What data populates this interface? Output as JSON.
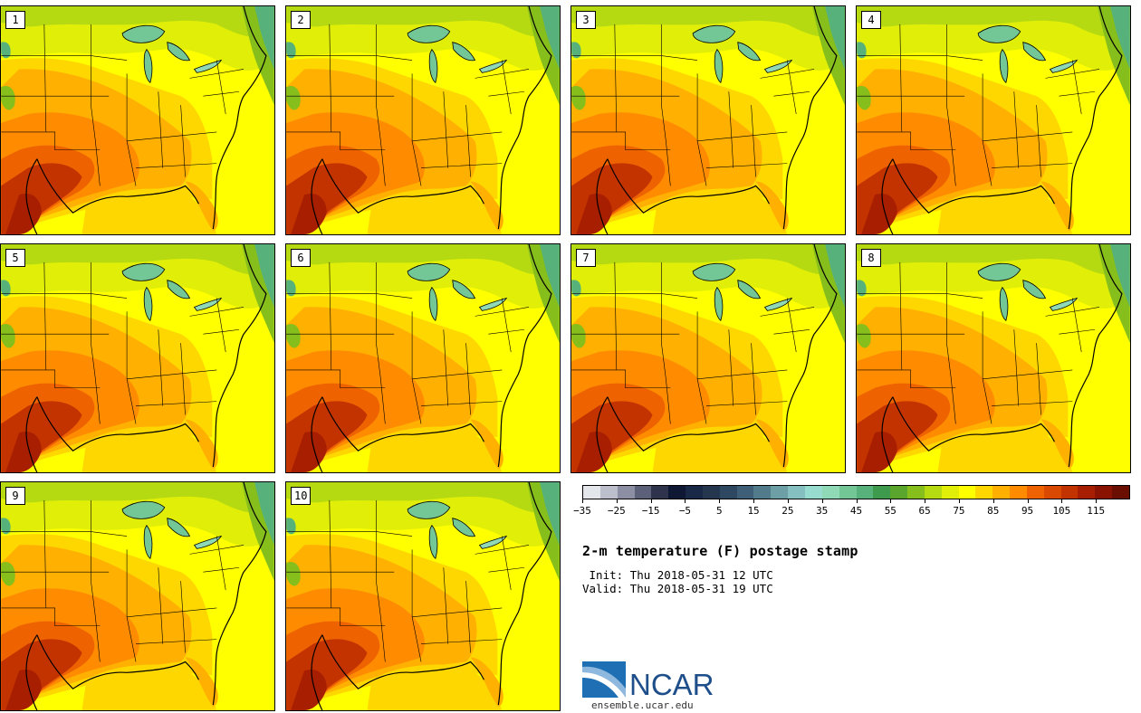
{
  "members": [
    "1",
    "2",
    "3",
    "4",
    "5",
    "6",
    "7",
    "8",
    "9",
    "10"
  ],
  "colorbar": {
    "colors": [
      "#e3e6ea",
      "#bcbecb",
      "#8c8fa4",
      "#5c6079",
      "#2f334c",
      "#0e1733",
      "#1a2848",
      "#24374f",
      "#2f4862",
      "#3f5e77",
      "#527c8c",
      "#6c9fa6",
      "#86bfbf",
      "#98dccf",
      "#8fd9b6",
      "#73c695",
      "#56b27a",
      "#3e9a4d",
      "#5aa52c",
      "#86bf1c",
      "#b6da12",
      "#e0ee08",
      "#ffff00",
      "#ffd700",
      "#ffb000",
      "#ff8c00",
      "#ee6300",
      "#d94a00",
      "#c33300",
      "#a81e00",
      "#8a1200",
      "#6a0f00"
    ],
    "ticks": [
      "−35",
      "−25",
      "−15",
      "−5",
      "5",
      "15",
      "25",
      "35",
      "45",
      "55",
      "65",
      "75",
      "85",
      "95",
      "105",
      "115"
    ]
  },
  "title": "2-m temperature (F) postage stamp",
  "init_line": " Init: Thu 2018-05-31 12 UTC",
  "valid_line": "Valid: Thu 2018-05-31 19 UTC",
  "logo_text": "NCAR",
  "url": "ensemble.ucar.edu"
}
